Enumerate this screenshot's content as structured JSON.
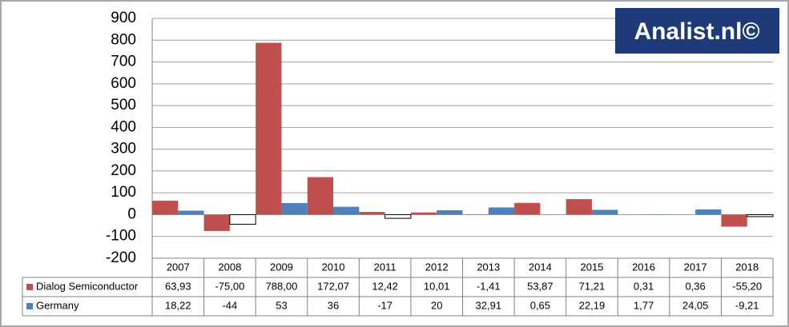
{
  "chart_data": {
    "type": "bar",
    "watermark": "Analist.nl©",
    "categories": [
      "2007",
      "2008",
      "2009",
      "2010",
      "2011",
      "2012",
      "2013",
      "2014",
      "2015",
      "2016",
      "2017",
      "2018"
    ],
    "series": [
      {
        "name": "Dialog Semiconductor",
        "color": "#c0504d",
        "invert_if_negative": false,
        "values": [
          63.93,
          -75,
          788,
          172.07,
          12.42,
          10.01,
          -1.41,
          53.87,
          71.21,
          0.31,
          0.36,
          -55.2
        ],
        "value_labels": [
          "63,93",
          "-75,00",
          "788,00",
          "172,07",
          "12,42",
          "10,01",
          "-1,41",
          "53,87",
          "71,21",
          "0,31",
          "0,36",
          "-55,20"
        ]
      },
      {
        "name": "Germany",
        "color": "#4f81bd",
        "invert_if_negative": true,
        "values": [
          18.22,
          -44,
          53,
          36,
          -17,
          20,
          32.91,
          0.65,
          22.19,
          1.77,
          24.05,
          -9.21
        ],
        "value_labels": [
          "18,22",
          "-44",
          "53",
          "36",
          "-17",
          "20",
          "32,91",
          "0,65",
          "22,19",
          "1,77",
          "24,05",
          "-9,21"
        ]
      }
    ],
    "ylim": [
      -200,
      900
    ],
    "yticks": [
      -200,
      -100,
      0,
      100,
      200,
      300,
      400,
      500,
      600,
      700,
      800,
      900
    ],
    "grid": true
  }
}
